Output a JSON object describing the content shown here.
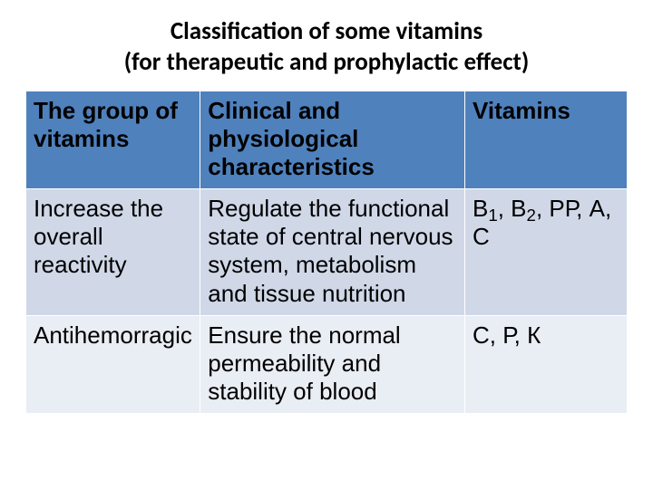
{
  "title_line1": "Classification of some vitamins",
  "title_line2": "(for therapeutic and prophylactic effect)",
  "table": {
    "header_bg": "#4f81bd",
    "row_bg_alt1": "#d0d8e8",
    "row_bg_alt2": "#e9edf4",
    "border_color": "#ffffff",
    "font_size_pt": 20,
    "columns": [
      "The group of vitamins",
      "Clinical and physiological characteristics",
      "Vitamins"
    ],
    "rows": [
      {
        "group": "Increase the overall reactivity",
        "clinical": "Regulate the functional state of central nervous system, metabolism and tissue nutrition",
        "vitamins_parts": [
          "В",
          "1",
          ", В",
          "2",
          ", РР, А, С"
        ]
      },
      {
        "group": "Antihemorragic",
        "clinical": "Ensure the normal permeability and stability of blood",
        "vitamins_parts": [
          "С, Р, К"
        ]
      }
    ]
  }
}
